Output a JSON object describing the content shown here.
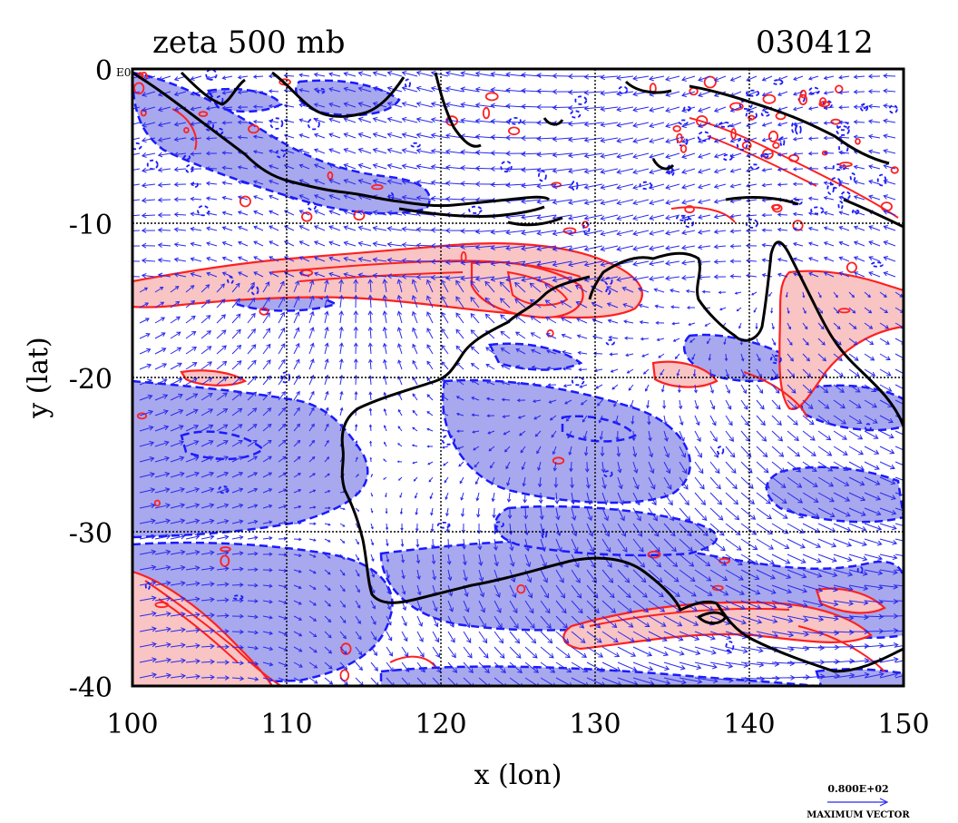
{
  "header": {
    "title": "zeta 500 mb",
    "date": "030412"
  },
  "axes": {
    "xlabel": "x (lon)",
    "ylabel": "y (lat)",
    "x_ticks": [
      "100",
      "110",
      "120",
      "130",
      "140",
      "150"
    ],
    "y_ticks": [
      "0",
      "-10",
      "-20",
      "-30",
      "-40"
    ],
    "corner_note": "E0"
  },
  "legend": {
    "max_vector_value": "0.800E+02",
    "max_vector_label": "MAXIMUM VECTOR"
  },
  "colors": {
    "positive_contour": "#ff2020",
    "positive_fill": "#f8c4c4",
    "negative_contour": "#1a1aff",
    "negative_fill": "#a8a8ee",
    "vectors": "#2a2aee",
    "coast": "#000000"
  },
  "map_extent": {
    "lon": [
      100,
      150
    ],
    "lat": [
      -40,
      0
    ],
    "grid_step": 10
  },
  "icons": [
    "wind-vector-arrow-icon"
  ]
}
